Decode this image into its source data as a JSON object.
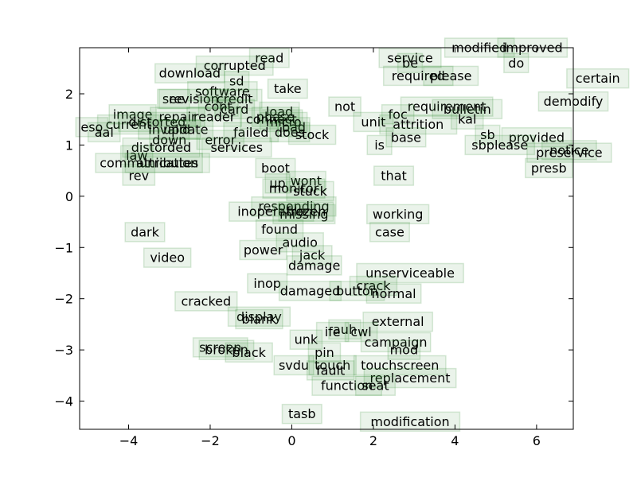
{
  "chart_data": {
    "type": "scatter",
    "title": "",
    "xlabel": "",
    "ylabel": "",
    "xlim": [
      -5.2,
      6.9
    ],
    "ylim": [
      -4.55,
      2.9
    ],
    "xticks": [
      -4,
      -2,
      0,
      2,
      4,
      6
    ],
    "yticks": [
      -4,
      -3,
      -2,
      -1,
      0,
      1,
      2
    ],
    "xtick_labels": [
      "−4",
      "−2",
      "0",
      "2",
      "4",
      "6"
    ],
    "ytick_labels": [
      "−4",
      "−3",
      "−2",
      "−1",
      "0",
      "1",
      "2"
    ],
    "grid": false,
    "point_color": "#2e8b2e",
    "points": [
      {
        "label": "modified",
        "x": 4.6,
        "y": 2.9
      },
      {
        "label": "improved",
        "x": 5.9,
        "y": 2.9
      },
      {
        "label": "service",
        "x": 2.9,
        "y": 2.7
      },
      {
        "label": "read",
        "x": -0.55,
        "y": 2.7
      },
      {
        "label": "be",
        "x": 2.9,
        "y": 2.6
      },
      {
        "label": "do",
        "x": 5.5,
        "y": 2.6
      },
      {
        "label": "corrupted",
        "x": -1.4,
        "y": 2.55
      },
      {
        "label": "download",
        "x": -2.5,
        "y": 2.4
      },
      {
        "label": "required",
        "x": 3.1,
        "y": 2.35
      },
      {
        "label": "please",
        "x": 3.9,
        "y": 2.35
      },
      {
        "label": "certain",
        "x": 7.5,
        "y": 2.3
      },
      {
        "label": "sd",
        "x": -1.35,
        "y": 2.25
      },
      {
        "label": "take",
        "x": -0.1,
        "y": 2.1
      },
      {
        "label": "software",
        "x": -1.7,
        "y": 2.05
      },
      {
        "label": "see",
        "x": -2.9,
        "y": 1.9
      },
      {
        "label": "revision",
        "x": -2.4,
        "y": 1.9
      },
      {
        "label": "credit",
        "x": -1.4,
        "y": 1.9
      },
      {
        "label": "demodify",
        "x": 6.9,
        "y": 1.85
      },
      {
        "label": "not",
        "x": 1.3,
        "y": 1.75
      },
      {
        "label": "requirement",
        "x": 3.8,
        "y": 1.75
      },
      {
        "label": "bulletin",
        "x": 4.3,
        "y": 1.7
      },
      {
        "label": "cont",
        "x": -1.8,
        "y": 1.75
      },
      {
        "label": "card",
        "x": -1.4,
        "y": 1.7
      },
      {
        "label": "load",
        "x": -0.3,
        "y": 1.65
      },
      {
        "label": "foc",
        "x": 2.6,
        "y": 1.6
      },
      {
        "label": "phase",
        "x": -0.4,
        "y": 1.55
      },
      {
        "label": "image",
        "x": -3.9,
        "y": 1.6
      },
      {
        "label": "repair",
        "x": -2.8,
        "y": 1.55
      },
      {
        "label": "reader",
        "x": -1.9,
        "y": 1.55
      },
      {
        "label": "kal",
        "x": 4.3,
        "y": 1.5
      },
      {
        "label": "connect",
        "x": -0.5,
        "y": 1.5
      },
      {
        "label": "current",
        "x": -4.0,
        "y": 1.4
      },
      {
        "label": "distorted",
        "x": -3.3,
        "y": 1.45
      },
      {
        "label": "unit",
        "x": 2.0,
        "y": 1.45
      },
      {
        "label": "attrition",
        "x": 3.1,
        "y": 1.4
      },
      {
        "label": "micro",
        "x": -0.2,
        "y": 1.45
      },
      {
        "label": "bad",
        "x": 0.05,
        "y": 1.35
      },
      {
        "label": "eso",
        "x": -4.9,
        "y": 1.35
      },
      {
        "label": "aal",
        "x": -4.6,
        "y": 1.25
      },
      {
        "label": "invalid",
        "x": -3.0,
        "y": 1.3
      },
      {
        "label": "update",
        "x": -2.6,
        "y": 1.3
      },
      {
        "label": "failed",
        "x": -1.0,
        "y": 1.25
      },
      {
        "label": "does",
        "x": -0.05,
        "y": 1.25
      },
      {
        "label": "stock",
        "x": 0.5,
        "y": 1.2
      },
      {
        "label": "sb",
        "x": 4.8,
        "y": 1.2
      },
      {
        "label": "provided",
        "x": 6.0,
        "y": 1.15
      },
      {
        "label": "down",
        "x": -3.0,
        "y": 1.1
      },
      {
        "label": "error",
        "x": -1.75,
        "y": 1.1
      },
      {
        "label": "base",
        "x": 2.8,
        "y": 1.15
      },
      {
        "label": "sbplease",
        "x": 5.1,
        "y": 1.0
      },
      {
        "label": "is",
        "x": 2.15,
        "y": 1.0
      },
      {
        "label": "notice",
        "x": 6.8,
        "y": 0.9
      },
      {
        "label": "preservice",
        "x": 6.8,
        "y": 0.85
      },
      {
        "label": "distorded",
        "x": -3.2,
        "y": 0.95
      },
      {
        "label": "services",
        "x": -1.35,
        "y": 0.95
      },
      {
        "label": "law",
        "x": -3.8,
        "y": 0.8
      },
      {
        "label": "communication",
        "x": -3.5,
        "y": 0.65
      },
      {
        "label": "attributes",
        "x": -3.05,
        "y": 0.65
      },
      {
        "label": "presb",
        "x": 6.3,
        "y": 0.55
      },
      {
        "label": "boot",
        "x": -0.4,
        "y": 0.55
      },
      {
        "label": "rev",
        "x": -3.75,
        "y": 0.4
      },
      {
        "label": "that",
        "x": 2.5,
        "y": 0.4
      },
      {
        "label": "wont",
        "x": 0.35,
        "y": 0.3
      },
      {
        "label": "up",
        "x": -0.35,
        "y": 0.25
      },
      {
        "label": "monitor",
        "x": 0.05,
        "y": 0.15
      },
      {
        "label": "stuck",
        "x": 0.45,
        "y": 0.1
      },
      {
        "label": "responding",
        "x": 0.05,
        "y": -0.2
      },
      {
        "label": "inoperable",
        "x": -0.5,
        "y": -0.3
      },
      {
        "label": "missing",
        "x": 0.3,
        "y": -0.35
      },
      {
        "label": "frozen",
        "x": 0.35,
        "y": -0.3
      },
      {
        "label": "working",
        "x": 2.6,
        "y": -0.35
      },
      {
        "label": "found",
        "x": -0.3,
        "y": -0.65
      },
      {
        "label": "case",
        "x": 2.4,
        "y": -0.7
      },
      {
        "label": "dark",
        "x": -3.6,
        "y": -0.7
      },
      {
        "label": "audio",
        "x": 0.2,
        "y": -0.9
      },
      {
        "label": "power",
        "x": -0.7,
        "y": -1.05
      },
      {
        "label": "video",
        "x": -3.05,
        "y": -1.2
      },
      {
        "label": "jack",
        "x": 0.5,
        "y": -1.15
      },
      {
        "label": "damage",
        "x": 0.55,
        "y": -1.35
      },
      {
        "label": "unserviceable",
        "x": 2.9,
        "y": -1.5
      },
      {
        "label": "inop",
        "x": -0.6,
        "y": -1.7
      },
      {
        "label": "crack",
        "x": 2.0,
        "y": -1.75
      },
      {
        "label": "button",
        "x": 1.6,
        "y": -1.85
      },
      {
        "label": "damaged",
        "x": 0.45,
        "y": -1.85
      },
      {
        "label": "normal",
        "x": 2.5,
        "y": -1.9
      },
      {
        "label": "cracked",
        "x": -2.1,
        "y": -2.05
      },
      {
        "label": "display",
        "x": -0.8,
        "y": -2.35
      },
      {
        "label": "blank",
        "x": -0.8,
        "y": -2.4
      },
      {
        "label": "external",
        "x": 2.6,
        "y": -2.45
      },
      {
        "label": "auh",
        "x": 1.3,
        "y": -2.6
      },
      {
        "label": "ife",
        "x": 1.0,
        "y": -2.65
      },
      {
        "label": "cwl",
        "x": 1.7,
        "y": -2.65
      },
      {
        "label": "unk",
        "x": 0.35,
        "y": -2.8
      },
      {
        "label": "campaign",
        "x": 2.55,
        "y": -2.85
      },
      {
        "label": "screen",
        "x": -1.75,
        "y": -2.95
      },
      {
        "label": "broken",
        "x": -1.6,
        "y": -3.0
      },
      {
        "label": "mod",
        "x": 2.75,
        "y": -3.0
      },
      {
        "label": "black",
        "x": -1.05,
        "y": -3.05
      },
      {
        "label": "pin",
        "x": 0.8,
        "y": -3.05
      },
      {
        "label": "svdu",
        "x": 0.05,
        "y": -3.3
      },
      {
        "label": "touch",
        "x": 1.0,
        "y": -3.3
      },
      {
        "label": "touchscreen",
        "x": 2.65,
        "y": -3.3
      },
      {
        "label": "fault",
        "x": 0.95,
        "y": -3.4
      },
      {
        "label": "replacement",
        "x": 2.9,
        "y": -3.55
      },
      {
        "label": "function",
        "x": 1.35,
        "y": -3.7
      },
      {
        "label": "seat",
        "x": 2.05,
        "y": -3.7
      },
      {
        "label": "tasb",
        "x": 0.25,
        "y": -4.25
      },
      {
        "label": "modification",
        "x": 2.9,
        "y": -4.4
      }
    ]
  }
}
